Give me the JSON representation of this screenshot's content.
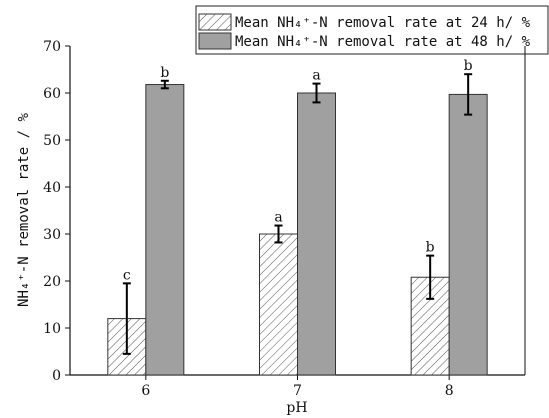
{
  "chart_data": {
    "type": "bar",
    "xlabel": "pH",
    "ylabel": "NH₄⁺-N removal rate / %",
    "categories": [
      "6",
      "7",
      "8"
    ],
    "ylim": [
      0,
      70
    ],
    "yticks": [
      0,
      10,
      20,
      30,
      40,
      50,
      60,
      70
    ],
    "legend_position": "top-right",
    "series": [
      {
        "name": "Mean NH₄⁺-N removal rate at 24 h/ %",
        "values": [
          12.0,
          30.0,
          20.8
        ],
        "errors": [
          7.5,
          1.8,
          4.6
        ],
        "letters": [
          "c",
          "a",
          "b"
        ],
        "fill": "hatched",
        "color": "#ffffff"
      },
      {
        "name": "Mean NH₄⁺-N removal rate at 48 h/ %",
        "values": [
          61.8,
          60.0,
          59.7
        ],
        "errors": [
          0.8,
          2.0,
          4.3
        ],
        "letters": [
          "b",
          "a",
          "b"
        ],
        "fill": "solid",
        "color": "#a0a0a0"
      }
    ]
  }
}
